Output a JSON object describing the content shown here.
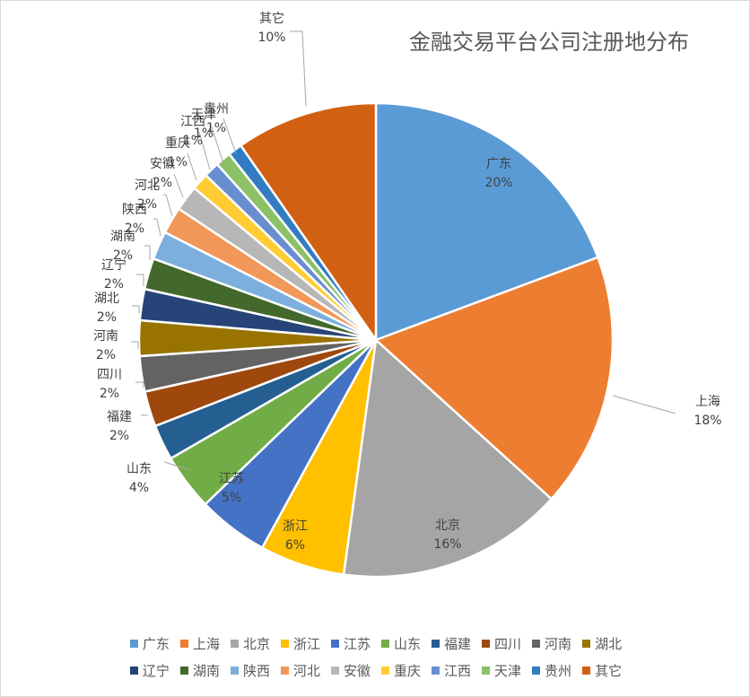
{
  "chart_data": {
    "type": "pie",
    "title": "金融交易平台公司注册地分布",
    "slices": [
      {
        "label": "广东",
        "value": 20,
        "pct_label": "20%",
        "color": "#5B9BD5"
      },
      {
        "label": "上海",
        "value": 18,
        "pct_label": "18%",
        "color": "#ED7D31"
      },
      {
        "label": "北京",
        "value": 16,
        "pct_label": "16%",
        "color": "#A5A5A5"
      },
      {
        "label": "浙江",
        "value": 6,
        "pct_label": "6%",
        "color": "#FFC000"
      },
      {
        "label": "江苏",
        "value": 5,
        "pct_label": "5%",
        "color": "#4472C4"
      },
      {
        "label": "山东",
        "value": 4,
        "pct_label": "4%",
        "color": "#70AD47"
      },
      {
        "label": "福建",
        "value": 2.5,
        "pct_label": "2%",
        "color": "#255E91"
      },
      {
        "label": "四川",
        "value": 2.5,
        "pct_label": "2%",
        "color": "#9E480E"
      },
      {
        "label": "河南",
        "value": 2.5,
        "pct_label": "2%",
        "color": "#636363"
      },
      {
        "label": "湖北",
        "value": 2.5,
        "pct_label": "2%",
        "color": "#997300"
      },
      {
        "label": "辽宁",
        "value": 2.2,
        "pct_label": "2%",
        "color": "#264478"
      },
      {
        "label": "湖南",
        "value": 2.2,
        "pct_label": "2%",
        "color": "#43682B"
      },
      {
        "label": "陕西",
        "value": 2,
        "pct_label": "2%",
        "color": "#7CAFDD"
      },
      {
        "label": "河北",
        "value": 1.9,
        "pct_label": "2%",
        "color": "#F1975A"
      },
      {
        "label": "安徽",
        "value": 1.8,
        "pct_label": "2%",
        "color": "#B7B7B7"
      },
      {
        "label": "重庆",
        "value": 1.2,
        "pct_label": "1%",
        "color": "#FFCD33"
      },
      {
        "label": "江西",
        "value": 1.1,
        "pct_label": "1%",
        "color": "#698ED0"
      },
      {
        "label": "天津",
        "value": 1.1,
        "pct_label": "1%",
        "color": "#8CC168"
      },
      {
        "label": "贵州",
        "value": 1,
        "pct_label": "1%",
        "color": "#327DC2"
      },
      {
        "label": "其它",
        "value": 10,
        "pct_label": "10%",
        "color": "#D26012"
      }
    ],
    "legend": {
      "position": "bottom"
    }
  }
}
